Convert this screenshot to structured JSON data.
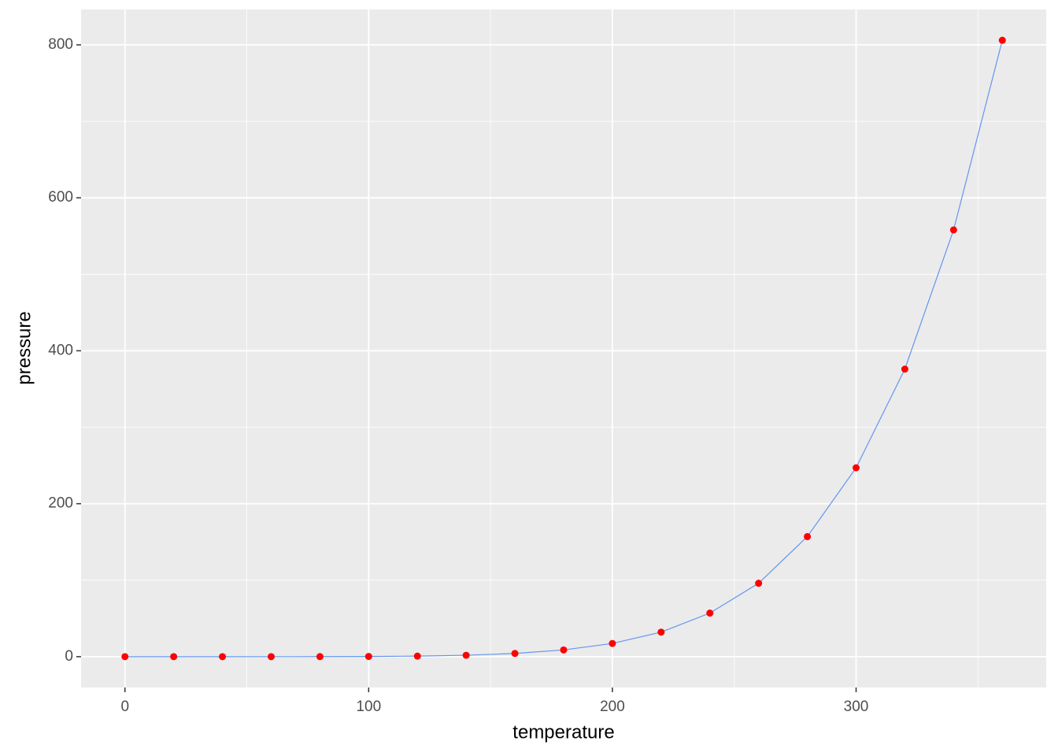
{
  "chart_data": {
    "type": "line",
    "x_label": "temperature",
    "y_label": "pressure",
    "x": [
      0,
      20,
      40,
      60,
      80,
      100,
      120,
      140,
      160,
      180,
      200,
      220,
      240,
      260,
      280,
      300,
      320,
      340,
      360
    ],
    "values": [
      0.0002,
      0.0012,
      0.006,
      0.03,
      0.09,
      0.27,
      0.75,
      1.85,
      4.2,
      8.8,
      17.3,
      32.1,
      57,
      96,
      157,
      247,
      376,
      558,
      806
    ],
    "line_color": "#6495ed",
    "point_color": "#ff0000",
    "xlim": [
      -18,
      378
    ],
    "xticks": [
      0,
      100,
      200,
      300
    ],
    "xminor": [
      50,
      150,
      250,
      350
    ],
    "ylim": [
      -40.3,
      846.3
    ],
    "yticks": [
      0,
      200,
      400,
      600,
      800
    ],
    "yminor": [
      100,
      300,
      500,
      700
    ],
    "grid": true
  }
}
